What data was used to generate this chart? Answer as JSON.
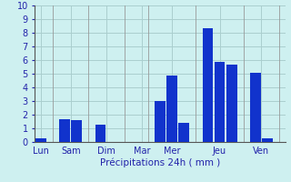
{
  "values": [
    0.3,
    1.7,
    1.6,
    1.3,
    0.0,
    0.0,
    3.0,
    4.9,
    1.4,
    8.3,
    5.9,
    5.7,
    5.1,
    0.3
  ],
  "x_positions": [
    0,
    2,
    3,
    5,
    6,
    8,
    10,
    11,
    12,
    14,
    15,
    16,
    18,
    19
  ],
  "tick_labels": [
    "Lun",
    "Sam",
    "Dim",
    "Mar",
    "Mer",
    "Jeu",
    "Ven"
  ],
  "tick_positions": [
    0,
    2.5,
    5.5,
    8.5,
    11,
    15,
    18.5
  ],
  "bar_color": "#1133cc",
  "bg_color": "#cef0f0",
  "grid_color": "#aacece",
  "xlabel": "Précipitations 24h ( mm )",
  "ylim": [
    0,
    10
  ],
  "yticks": [
    0,
    1,
    2,
    3,
    4,
    5,
    6,
    7,
    8,
    9,
    10
  ],
  "xlabel_color": "#2222aa",
  "tick_label_color": "#2222aa",
  "separator_x": [
    1,
    4,
    7,
    9,
    13,
    17,
    20
  ]
}
